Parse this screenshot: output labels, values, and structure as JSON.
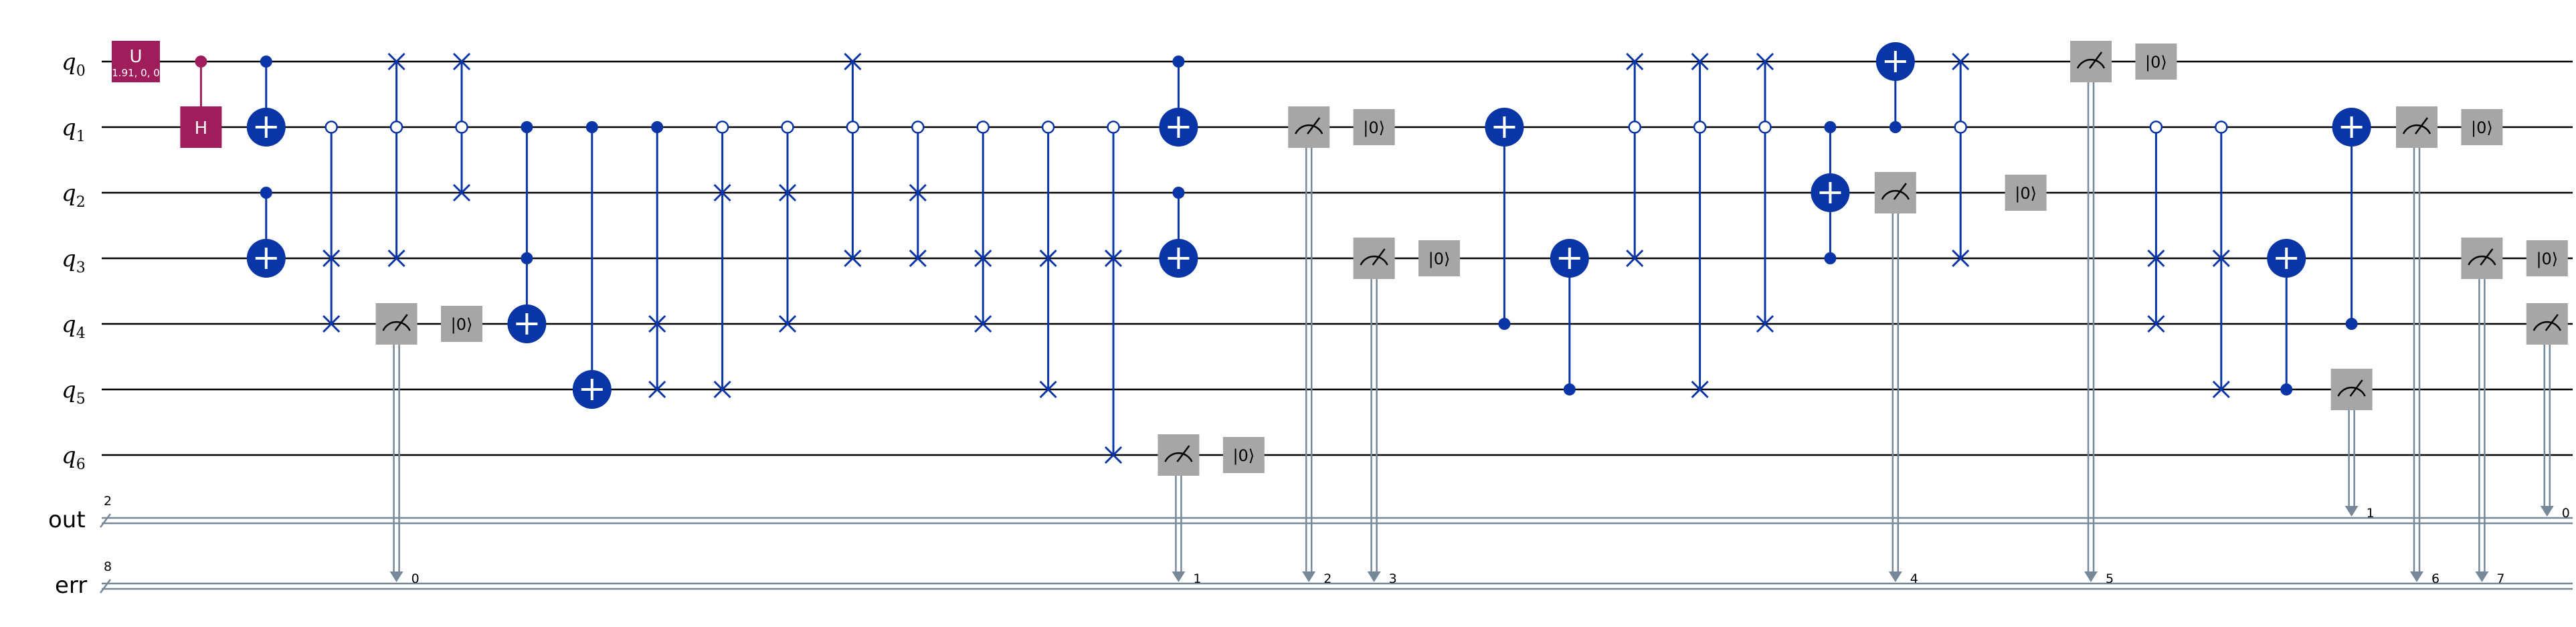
{
  "qubits": [
    {
      "name": "q",
      "index": "0"
    },
    {
      "name": "q",
      "index": "1"
    },
    {
      "name": "q",
      "index": "2"
    },
    {
      "name": "q",
      "index": "3"
    },
    {
      "name": "q",
      "index": "4"
    },
    {
      "name": "q",
      "index": "5"
    },
    {
      "name": "q",
      "index": "6"
    }
  ],
  "cregs": [
    {
      "name": "out",
      "size": "2"
    },
    {
      "name": "err",
      "size": "8"
    }
  ],
  "colors": {
    "wire": "#000000",
    "classical": "#778899",
    "u_gate": "#9f1d5a",
    "h_gate": "#9f1d5a",
    "controlled": "#0a35a6",
    "measure": "#a6a6a6"
  },
  "gate_text": {
    "u_label": "U",
    "u_params": "1.91, 0, 0",
    "h_label": "H",
    "reset_label": "|0⟩"
  },
  "operations": [
    {
      "type": "U",
      "qubit": 0,
      "column": 1
    },
    {
      "type": "CH",
      "control": 0,
      "target": 1,
      "column": 2
    },
    {
      "type": "CX",
      "control": 0,
      "target": 1,
      "column": 3
    },
    {
      "type": "CX",
      "control": 2,
      "target": 3,
      "column": 3
    },
    {
      "type": "CSWAP",
      "control": 1,
      "open_control": true,
      "swap": [
        3,
        4
      ],
      "column": 4
    },
    {
      "type": "CSWAP",
      "control": 1,
      "open_control": true,
      "swap": [
        0,
        3
      ],
      "column": 5
    },
    {
      "type": "MEASURE",
      "qubit": 4,
      "creg": "err",
      "bit": "0",
      "column": 5
    },
    {
      "type": "RESET",
      "qubit": 4,
      "column": 6
    },
    {
      "type": "CSWAP",
      "control": 1,
      "open_control": true,
      "swap": [
        0,
        2
      ],
      "column": 6
    },
    {
      "type": "CX",
      "control": [
        1,
        3
      ],
      "target": 4,
      "column": 7
    },
    {
      "type": "CX",
      "control": 1,
      "target": 5,
      "column": 8
    },
    {
      "type": "CSWAP",
      "control": 1,
      "swap": [
        4,
        5
      ],
      "column": 9
    },
    {
      "type": "CSWAP",
      "control": 1,
      "open_control": true,
      "swap": [
        2,
        5
      ],
      "column": 10
    },
    {
      "type": "CSWAP",
      "control": 1,
      "open_control": true,
      "swap": [
        2,
        4
      ],
      "column": 11
    },
    {
      "type": "CSWAP",
      "control": 1,
      "open_control": true,
      "swap": [
        0,
        3
      ],
      "column": 12
    },
    {
      "type": "CSWAP",
      "control": 1,
      "open_control": true,
      "swap": [
        2,
        3
      ],
      "column": 13
    },
    {
      "type": "CSWAP",
      "control": 1,
      "open_control": true,
      "swap": [
        3,
        4
      ],
      "column": 14
    },
    {
      "type": "CSWAP",
      "control": 1,
      "open_control": true,
      "swap": [
        3,
        5
      ],
      "column": 15
    },
    {
      "type": "CSWAP",
      "control": 1,
      "open_control": true,
      "swap": [
        3,
        6
      ],
      "column": 16
    },
    {
      "type": "MEASURE",
      "qubit": 6,
      "creg": "err",
      "bit": "1",
      "column": 17
    },
    {
      "type": "CX",
      "control": 0,
      "target": 1,
      "column": 17
    },
    {
      "type": "CX",
      "control": 2,
      "target": 3,
      "column": 17
    },
    {
      "type": "RESET",
      "qubit": 6,
      "column": 18
    },
    {
      "type": "MEASURE",
      "qubit": 1,
      "creg": "err",
      "bit": "2",
      "column": 19
    },
    {
      "type": "RESET",
      "qubit": 1,
      "column": 20
    },
    {
      "type": "MEASURE",
      "qubit": 3,
      "creg": "err",
      "bit": "3",
      "column": 20
    },
    {
      "type": "RESET",
      "qubit": 3,
      "column": 21
    },
    {
      "type": "CX",
      "control": 4,
      "target": 1,
      "column": 22
    },
    {
      "type": "CX",
      "control": 5,
      "target": 3,
      "column": 23
    },
    {
      "type": "CSWAP",
      "control": 1,
      "open_control": true,
      "swap": [
        0,
        3
      ],
      "column": 24
    },
    {
      "type": "CSWAP",
      "control": 1,
      "open_control": true,
      "swap": [
        0,
        5
      ],
      "column": 25
    },
    {
      "type": "CSWAP",
      "control": 1,
      "open_control": true,
      "swap": [
        0,
        4
      ],
      "column": 26
    },
    {
      "type": "CX",
      "control": [
        1,
        3
      ],
      "target": 2,
      "column": 27
    },
    {
      "type": "CX",
      "control": 1,
      "target": 0,
      "column": 28
    },
    {
      "type": "MEASURE",
      "qubit": 2,
      "creg": "err",
      "bit": "4",
      "column": 28
    },
    {
      "type": "CSWAP",
      "control": 1,
      "open_control": true,
      "swap": [
        0,
        3
      ],
      "column": 29
    },
    {
      "type": "RESET",
      "qubit": 2,
      "column": 30
    },
    {
      "type": "MEASURE",
      "qubit": 0,
      "creg": "err",
      "bit": "5",
      "column": 31
    },
    {
      "type": "RESET",
      "qubit": 0,
      "column": 32
    },
    {
      "type": "CSWAP",
      "control": 1,
      "open_control": true,
      "swap": [
        3,
        4
      ],
      "column": 32
    },
    {
      "type": "CSWAP",
      "control": 1,
      "open_control": true,
      "swap": [
        3,
        5
      ],
      "column": 33
    },
    {
      "type": "CX",
      "control": 5,
      "target": 3,
      "column": 34
    },
    {
      "type": "MEASURE",
      "qubit": 5,
      "creg": "out",
      "bit": "1",
      "column": 35
    },
    {
      "type": "CX",
      "control": 4,
      "target": 1,
      "column": 35
    },
    {
      "type": "MEASURE",
      "qubit": 1,
      "creg": "err",
      "bit": "6",
      "column": 36
    },
    {
      "type": "RESET",
      "qubit": 1,
      "column": 37
    },
    {
      "type": "MEASURE",
      "qubit": 3,
      "creg": "err",
      "bit": "7",
      "column": 37
    },
    {
      "type": "MEASURE",
      "qubit": 4,
      "creg": "out",
      "bit": "0",
      "column": 38
    },
    {
      "type": "RESET",
      "qubit": 3,
      "column": 38
    }
  ]
}
